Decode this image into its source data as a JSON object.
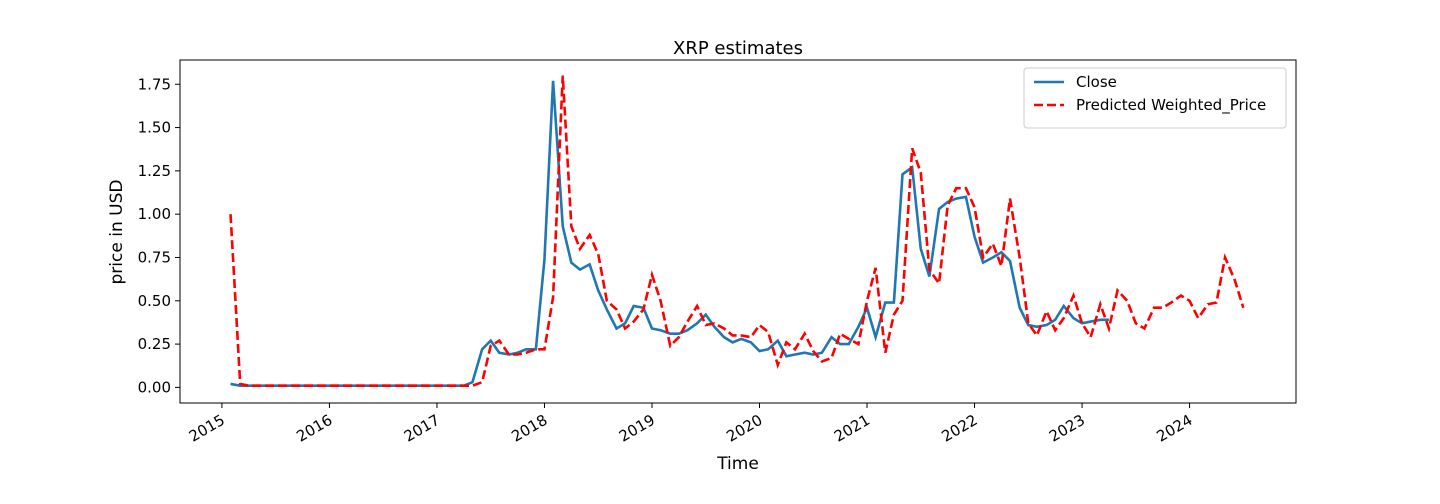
{
  "chart_data": {
    "type": "line",
    "title": "XRP estimates",
    "x_label": "Time",
    "y_label": "price in USD",
    "x": [
      2015.08,
      2015.17,
      2015.25,
      2015.33,
      2015.42,
      2015.5,
      2015.58,
      2015.67,
      2015.75,
      2015.83,
      2015.92,
      2016.0,
      2016.08,
      2016.17,
      2016.25,
      2016.33,
      2016.42,
      2016.5,
      2016.58,
      2016.67,
      2016.75,
      2016.83,
      2016.92,
      2017.0,
      2017.08,
      2017.17,
      2017.25,
      2017.33,
      2017.42,
      2017.5,
      2017.58,
      2017.67,
      2017.75,
      2017.83,
      2017.92,
      2018.0,
      2018.08,
      2018.17,
      2018.25,
      2018.33,
      2018.42,
      2018.5,
      2018.58,
      2018.67,
      2018.75,
      2018.83,
      2018.92,
      2019.0,
      2019.08,
      2019.17,
      2019.25,
      2019.33,
      2019.42,
      2019.5,
      2019.58,
      2019.67,
      2019.75,
      2019.83,
      2019.92,
      2020.0,
      2020.08,
      2020.17,
      2020.25,
      2020.33,
      2020.42,
      2020.5,
      2020.58,
      2020.67,
      2020.75,
      2020.83,
      2020.92,
      2021.0,
      2021.08,
      2021.17,
      2021.25,
      2021.33,
      2021.42,
      2021.5,
      2021.58,
      2021.67,
      2021.75,
      2021.83,
      2021.92,
      2022.0,
      2022.08,
      2022.17,
      2022.25,
      2022.33,
      2022.42,
      2022.5,
      2022.58,
      2022.67,
      2022.75,
      2022.83,
      2022.92,
      2023.0,
      2023.08,
      2023.17,
      2023.25,
      2023.33,
      2023.42,
      2023.5,
      2023.58,
      2023.67,
      2023.75,
      2023.83,
      2023.92,
      2024.0,
      2024.08,
      2024.17,
      2024.25,
      2024.33,
      2024.42,
      2024.5
    ],
    "series": [
      {
        "name": "Close",
        "color": "#1f77b4",
        "dash": false,
        "values": [
          0.02,
          0.01,
          0.01,
          0.01,
          0.01,
          0.01,
          0.01,
          0.01,
          0.01,
          0.01,
          0.01,
          0.01,
          0.01,
          0.01,
          0.01,
          0.01,
          0.01,
          0.01,
          0.01,
          0.01,
          0.01,
          0.01,
          0.01,
          0.01,
          0.01,
          0.01,
          0.01,
          0.03,
          0.22,
          0.27,
          0.2,
          0.19,
          0.2,
          0.22,
          0.22,
          0.74,
          1.77,
          0.93,
          0.72,
          0.68,
          0.71,
          0.56,
          0.45,
          0.34,
          0.37,
          0.47,
          0.46,
          0.34,
          0.33,
          0.31,
          0.31,
          0.33,
          0.37,
          0.42,
          0.35,
          0.29,
          0.26,
          0.28,
          0.26,
          0.21,
          0.22,
          0.27,
          0.18,
          0.19,
          0.2,
          0.19,
          0.2,
          0.29,
          0.25,
          0.25,
          0.35,
          0.46,
          0.29,
          0.49,
          0.49,
          1.23,
          1.27,
          0.8,
          0.64,
          1.03,
          1.07,
          1.09,
          1.1,
          0.87,
          0.72,
          0.75,
          0.78,
          0.73,
          0.46,
          0.36,
          0.35,
          0.36,
          0.39,
          0.47,
          0.4,
          0.37,
          0.38,
          0.39,
          0.39,
          null,
          null,
          null,
          null,
          null,
          null,
          null,
          null,
          null,
          null,
          null,
          null,
          null,
          null,
          null
        ]
      },
      {
        "name": "Predicted Weighted_Price",
        "color": "#ff0000",
        "dash": true,
        "values": [
          1.0,
          0.02,
          0.01,
          0.01,
          0.01,
          0.01,
          0.01,
          0.01,
          0.01,
          0.01,
          0.01,
          0.01,
          0.01,
          0.01,
          0.01,
          0.01,
          0.01,
          0.01,
          0.01,
          0.01,
          0.01,
          0.01,
          0.01,
          0.01,
          0.01,
          0.01,
          0.01,
          0.01,
          0.03,
          0.24,
          0.27,
          0.19,
          0.19,
          0.2,
          0.22,
          0.22,
          0.52,
          1.8,
          0.93,
          0.8,
          0.88,
          0.77,
          0.5,
          0.45,
          0.34,
          0.38,
          0.45,
          0.65,
          0.5,
          0.24,
          0.29,
          0.38,
          0.47,
          0.36,
          0.37,
          0.34,
          0.3,
          0.3,
          0.29,
          0.36,
          0.32,
          0.13,
          0.26,
          0.22,
          0.31,
          0.21,
          0.15,
          0.17,
          0.31,
          0.28,
          0.25,
          0.5,
          0.69,
          0.2,
          0.42,
          0.5,
          1.38,
          1.24,
          0.68,
          0.6,
          1.05,
          1.15,
          1.15,
          1.04,
          0.75,
          0.83,
          0.7,
          1.09,
          0.75,
          0.37,
          0.3,
          0.44,
          0.33,
          0.4,
          0.53,
          0.37,
          0.29,
          0.48,
          0.34,
          0.56,
          0.5,
          0.37,
          0.34,
          0.46,
          0.46,
          0.49,
          0.53,
          0.5,
          0.4,
          0.48,
          0.49,
          0.75,
          0.62,
          0.46
        ]
      }
    ],
    "xlim": [
      2014.61,
      2024.99
    ],
    "xticks": [
      2015,
      2016,
      2017,
      2018,
      2019,
      2020,
      2021,
      2022,
      2023,
      2024
    ],
    "ylim": [
      -0.09,
      1.89
    ],
    "yticks": [
      {
        "value": 0,
        "label": "0.00"
      },
      0.25,
      {
        "value": 0.5,
        "label": "0.50"
      },
      0.75,
      {
        "value": 1,
        "label": "1.00"
      },
      1.25,
      {
        "value": 1.5,
        "label": "1.50"
      },
      1.75
    ],
    "legend": "upper right"
  }
}
